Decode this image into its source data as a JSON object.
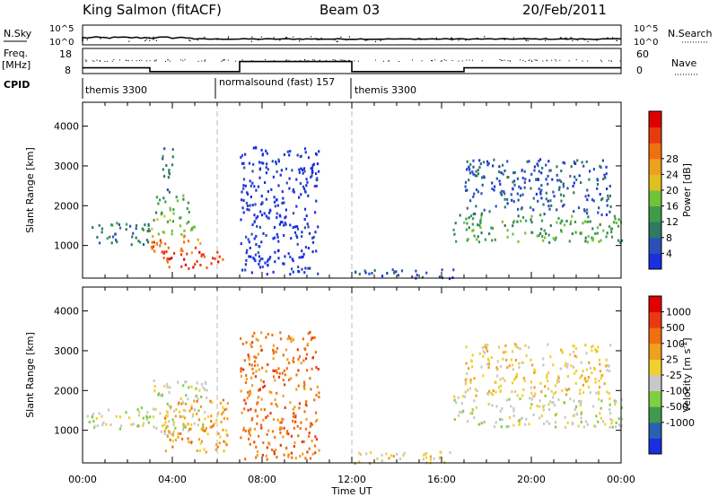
{
  "header": {
    "station": "King Salmon (fitACF)",
    "beam": "Beam 03",
    "date": "20/Feb/2011"
  },
  "strip": {
    "nsky_label": "N.Sky",
    "nsky_ticks": [
      "10^5",
      "10^0"
    ],
    "nsearch_label": "N.Search",
    "nsearch_ticks": [
      "10^5",
      "10^0"
    ],
    "freq_label": "Freq.",
    "freq_unit": "[MHz]",
    "freq_ticks": [
      "18",
      "8"
    ],
    "nave_label": "Nave",
    "nave_ticks": [
      "60",
      "0"
    ],
    "cpid_label": "CPID",
    "freq_steps": [
      {
        "from": 0.0,
        "to": 3.0,
        "mhz": 11.0
      },
      {
        "from": 3.0,
        "to": 7.0,
        "mhz": 9.5
      },
      {
        "from": 7.0,
        "to": 12.0,
        "mhz": 13.5
      },
      {
        "from": 12.0,
        "to": 17.0,
        "mhz": 9.5
      },
      {
        "from": 17.0,
        "to": 24.0,
        "mhz": 11.0
      }
    ],
    "modes": [
      {
        "start": 0.0,
        "label": "themis 3300"
      },
      {
        "start": 6.0,
        "label": "normalsound (fast) 157"
      },
      {
        "start": 12.0,
        "label": "themis 3300"
      }
    ]
  },
  "chart_data": [
    {
      "type": "heatmap",
      "panel": "power",
      "ylabel": "Slant Range [km]",
      "ylim": [
        180,
        4600
      ],
      "yticks": [
        "1000",
        "2000",
        "3000",
        "4000"
      ],
      "xlabel": "Time UT",
      "xlim": [
        0,
        24
      ],
      "xticks": [
        "00:00",
        "04:00",
        "08:00",
        "12:00",
        "16:00",
        "20:00",
        "00:00"
      ],
      "colorbar": {
        "title": "Power [dB]",
        "ticks": [
          "4",
          "8",
          "12",
          "16",
          "20",
          "24",
          "28"
        ],
        "colors": [
          "#1a2fe0",
          "#2a50b8",
          "#2f7a62",
          "#3d9b4a",
          "#6fc43a",
          "#e0c020",
          "#f0a020",
          "#f07010",
          "#e83a10",
          "#e00000"
        ]
      },
      "regions": [
        {
          "t0": 0.0,
          "t1": 3.0,
          "r0": 1050,
          "r1": 1600,
          "level": 2
        },
        {
          "t0": 3.0,
          "t1": 5.5,
          "r0": 850,
          "r1": 1300,
          "level": 7
        },
        {
          "t0": 3.0,
          "t1": 5.0,
          "r0": 1300,
          "r1": 1800,
          "level": 4
        },
        {
          "t0": 3.2,
          "t1": 4.8,
          "r0": 1800,
          "r1": 2300,
          "level": 3
        },
        {
          "t0": 3.5,
          "t1": 4.0,
          "r0": 2300,
          "r1": 3500,
          "level": 2
        },
        {
          "t0": 3.5,
          "t1": 6.5,
          "r0": 450,
          "r1": 900,
          "level": 8
        },
        {
          "t0": 7.0,
          "t1": 10.5,
          "r0": 300,
          "r1": 3500,
          "level": 0
        },
        {
          "t0": 12.0,
          "t1": 16.5,
          "r0": 200,
          "r1": 450,
          "level": 1
        },
        {
          "t0": 16.5,
          "t1": 24.0,
          "r0": 1100,
          "r1": 1800,
          "level": 3
        },
        {
          "t0": 17.0,
          "t1": 23.5,
          "r0": 1800,
          "r1": 3200,
          "level": 1
        }
      ]
    },
    {
      "type": "heatmap",
      "panel": "velocity",
      "ylabel": "Slant Range [km]",
      "ylim": [
        180,
        4600
      ],
      "yticks": [
        "1000",
        "2000",
        "3000",
        "4000"
      ],
      "xlabel": "Time UT",
      "xlim": [
        0,
        24
      ],
      "xticks": [
        "00:00",
        "04:00",
        "08:00",
        "12:00",
        "16:00",
        "20:00",
        "00:00"
      ],
      "colorbar": {
        "title": "Velocity [m s",
        "title_sup": "-1",
        "title_end": "]",
        "ticks": [
          "1000",
          "500",
          "100",
          "25",
          "-25",
          "-100",
          "-500",
          "-1000"
        ],
        "colors": [
          "#1a2fe0",
          "#2a60b0",
          "#3f9a50",
          "#7dd040",
          "#c8c8c8",
          "#f0d030",
          "#f0a020",
          "#f07010",
          "#e83a10",
          "#e00000"
        ]
      },
      "regions": [
        {
          "t0": 0.0,
          "t1": 3.0,
          "r0": 1050,
          "r1": 1600,
          "level": 4
        },
        {
          "t0": 3.0,
          "t1": 5.5,
          "r0": 900,
          "r1": 2300,
          "level": 4
        },
        {
          "t0": 3.5,
          "t1": 6.5,
          "r0": 450,
          "r1": 1800,
          "level": 6
        },
        {
          "t0": 7.0,
          "t1": 10.5,
          "r0": 300,
          "r1": 3500,
          "level": 7
        },
        {
          "t0": 12.0,
          "t1": 16.5,
          "r0": 200,
          "r1": 500,
          "level": 5
        },
        {
          "t0": 16.5,
          "t1": 24.0,
          "r0": 1100,
          "r1": 1900,
          "level": 4
        },
        {
          "t0": 17.0,
          "t1": 23.5,
          "r0": 1900,
          "r1": 3200,
          "level": 5
        }
      ]
    }
  ]
}
